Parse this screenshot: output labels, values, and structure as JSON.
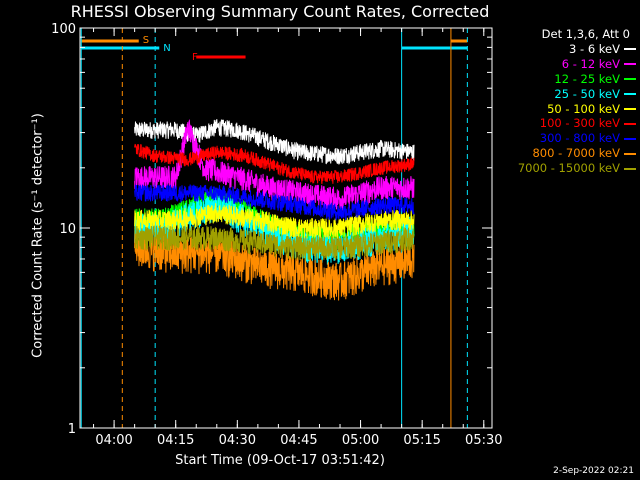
{
  "chart_data": {
    "type": "line",
    "title": "RHESSI Observing Summary Count Rates, Corrected",
    "xlabel": "Start Time (09-Oct-17 03:51:42)",
    "ylabel": "Corrected Count Rate (s⁻¹ detector⁻¹)",
    "yscale": "log",
    "ylim": [
      1,
      100
    ],
    "yticks": [
      "1",
      "10",
      "100"
    ],
    "xlim": [
      "03:51:42",
      "05:32:00"
    ],
    "xticks": [
      "04:00",
      "04:15",
      "04:30",
      "04:45",
      "05:00",
      "05:15",
      "05:30"
    ],
    "legend_title": "Det 1,3,6, Att 0",
    "legend_position": "top-right",
    "timestamp": "2-Sep-2022 02:21",
    "data_window": [
      "04:05",
      "05:13"
    ],
    "series": [
      {
        "name": "3 - 6 keV",
        "color": "#ffffff",
        "x": [
          "04:05",
          "04:15",
          "04:20",
          "04:25",
          "04:30",
          "04:38",
          "04:45",
          "04:55",
          "05:05",
          "05:13"
        ],
        "y": [
          31,
          31,
          29,
          32,
          31,
          27,
          24,
          23,
          25,
          24
        ]
      },
      {
        "name": "6 - 12 keV",
        "color": "#ff00ff",
        "x": [
          "04:05",
          "04:15",
          "04:18",
          "04:22",
          "04:30",
          "04:38",
          "04:45",
          "04:55",
          "05:05",
          "05:13"
        ],
        "y": [
          18,
          18,
          32,
          20,
          18,
          16,
          15,
          14,
          16,
          16
        ]
      },
      {
        "name": "12 - 25 keV",
        "color": "#00ff00",
        "x": [
          "04:05",
          "04:12",
          "04:20",
          "04:25",
          "04:32",
          "04:40",
          "04:48",
          "04:55",
          "05:05",
          "05:13"
        ],
        "y": [
          11,
          11,
          13,
          14,
          12,
          10,
          9,
          9,
          10,
          10
        ]
      },
      {
        "name": "25 - 50 keV",
        "color": "#00ffff",
        "x": [
          "04:05",
          "04:12",
          "04:20",
          "04:25",
          "04:32",
          "04:40",
          "04:48",
          "04:55",
          "05:05",
          "05:13"
        ],
        "y": [
          10,
          10,
          12,
          13,
          11,
          9,
          8,
          8,
          9,
          10
        ]
      },
      {
        "name": "50 - 100 keV",
        "color": "#ffff00",
        "x": [
          "04:05",
          "04:15",
          "04:25",
          "04:35",
          "04:45",
          "04:55",
          "05:05",
          "05:13"
        ],
        "y": [
          11,
          11,
          12,
          11,
          10,
          10,
          11,
          11
        ]
      },
      {
        "name": "100 - 300 keV",
        "color": "#ff0000",
        "x": [
          "04:05",
          "04:10",
          "04:18",
          "04:25",
          "04:32",
          "04:40",
          "04:48",
          "04:55",
          "05:05",
          "05:13"
        ],
        "y": [
          25,
          23,
          22,
          24,
          23,
          20,
          18,
          18,
          20,
          21
        ]
      },
      {
        "name": "300 - 800 keV",
        "color": "#0000ff",
        "x": [
          "04:05",
          "04:15",
          "04:25",
          "04:35",
          "04:45",
          "04:55",
          "05:05",
          "05:13"
        ],
        "y": [
          15,
          15,
          15,
          14,
          13,
          12,
          13,
          13
        ]
      },
      {
        "name": "800 - 7000 keV",
        "color": "#ff8c00",
        "x": [
          "04:05",
          "04:15",
          "04:25",
          "04:35",
          "04:45",
          "04:55",
          "05:05",
          "05:13"
        ],
        "y": [
          8,
          7.5,
          7.5,
          6.5,
          6,
          5.5,
          6.5,
          7
        ]
      },
      {
        "name": "7000 - 15000 keV",
        "color": "#a0a000",
        "x": [
          "04:05",
          "04:15",
          "04:25",
          "04:35",
          "04:45",
          "04:55",
          "05:05",
          "05:13"
        ],
        "y": [
          9,
          9,
          9,
          8.5,
          8,
          8,
          8.5,
          9
        ]
      }
    ],
    "annotations": [
      {
        "text": "S",
        "color": "#ff8c00",
        "x": "04:06"
      },
      {
        "text": "N",
        "color": "#00e5ff",
        "x": "04:11"
      },
      {
        "text": "F",
        "color": "#ff0000",
        "x": "04:18"
      }
    ]
  }
}
